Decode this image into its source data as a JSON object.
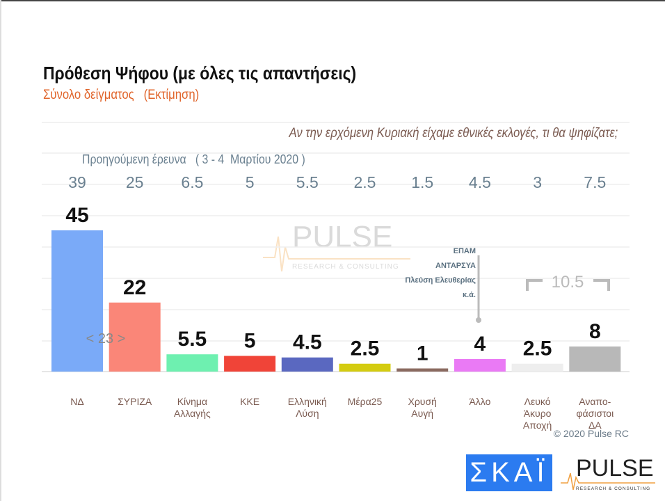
{
  "chart_data": {
    "type": "bar",
    "title": "Πρόθεση Ψήφου (με όλες τις απαντήσεις)",
    "subtitle": "Σύνολο δείγματος   (Εκτίμηση)",
    "question": "Αν την ερχόμενη Κυριακή είχαμε εθνικές εκλογές, τι θα ψηφίζατε;",
    "previous_label": "Προηγούμενη έρευνα   ( 3 - 4  Μαρτίου 2020 )",
    "categories": [
      [
        "ΝΔ"
      ],
      [
        "ΣΥΡΙΖΑ"
      ],
      [
        "Κίνημα",
        "Αλλαγής"
      ],
      [
        "ΚΚΕ"
      ],
      [
        "Ελληνική",
        "Λύση"
      ],
      [
        "Μέρα25"
      ],
      [
        "Χρυσή",
        "Αυγή"
      ],
      [
        "Άλλο"
      ],
      [
        "Λευκό",
        "Άκυρο",
        "Αποχή"
      ],
      [
        "Αναπο-",
        "φάσιστοι",
        "ΔΑ"
      ]
    ],
    "values": [
      45,
      22,
      5.5,
      5,
      4.5,
      2.5,
      1,
      4,
      2.5,
      8
    ],
    "value_labels": [
      "45",
      "22",
      "5.5",
      "5",
      "4.5",
      "2.5",
      "1",
      "4",
      "2.5",
      "8"
    ],
    "previous": [
      "39",
      "25",
      "6.5",
      "5",
      "5.5",
      "2.5",
      "1.5",
      "4.5",
      "3",
      "7.5"
    ],
    "colors": [
      "#7aaaf8",
      "#fa8678",
      "#6ef0b0",
      "#f04438",
      "#5a68c0",
      "#d4cc10",
      "#8a6a60",
      "#ea7af5",
      "#eeeeee",
      "#b8b8b8"
    ],
    "annotations": {
      "gap": "< 23 >",
      "other_parties": [
        "ΕΠΑΜ",
        "ΑΝΤΑΡΣΥΑ",
        "Πλεύση Ελευθερίας",
        "κ.ά."
      ],
      "sum_blank_undecided": "10.5"
    },
    "ylim": [
      0,
      50
    ],
    "grid": true
  },
  "copyright": "© 2020 Pulse RC",
  "logos": {
    "skai": "ΣΚΑΪ",
    "pulse": "PULSE",
    "pulse_sub": "RESEARCH & CONSULTING"
  }
}
